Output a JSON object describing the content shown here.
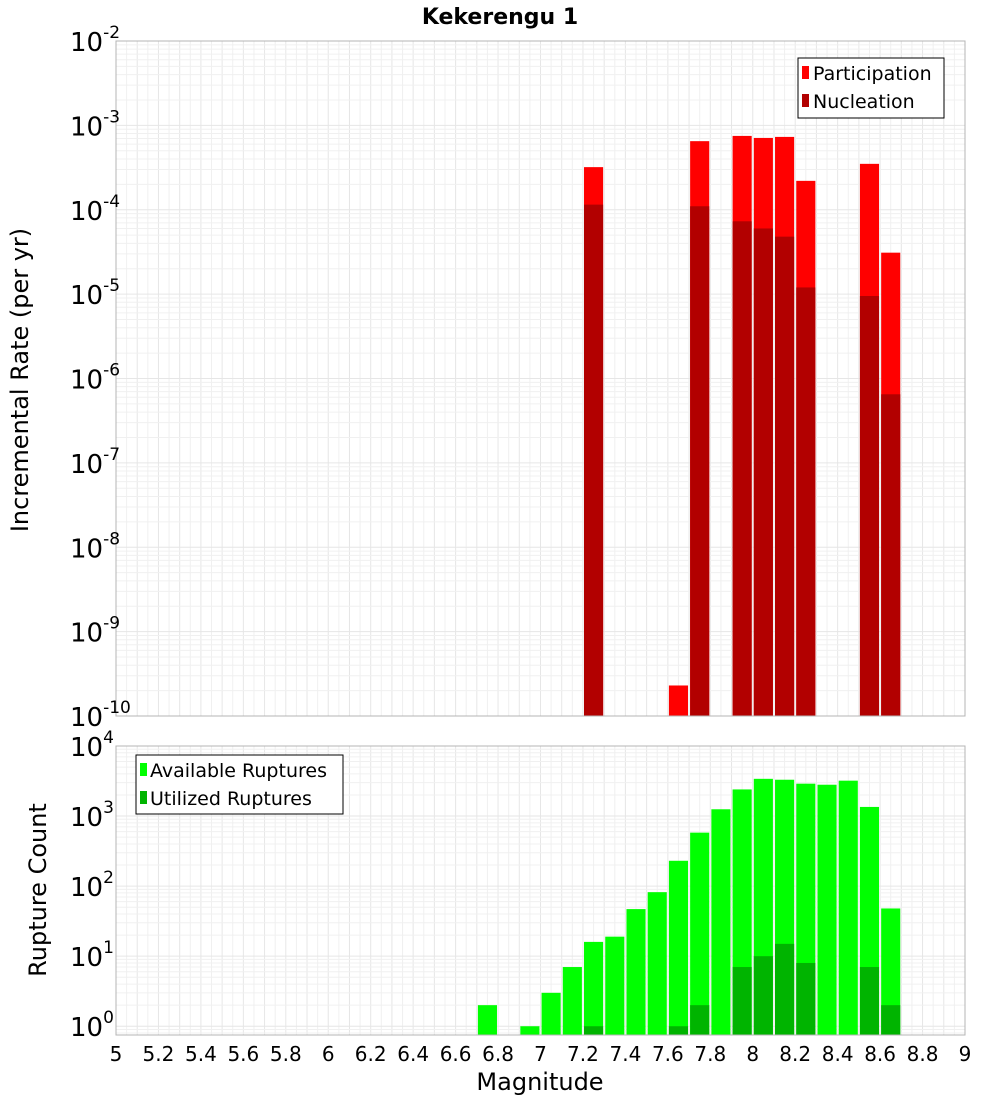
{
  "chart_data": [
    {
      "type": "bar",
      "title": "Kekerengu 1",
      "xlabel": "",
      "ylabel": "Incremental Rate (per yr)",
      "xlim": [
        5,
        9
      ],
      "ylim": [
        1e-10,
        0.01
      ],
      "yscale": "log",
      "y_tick_exponents": [
        "-10",
        "-9",
        "-8",
        "-7",
        "-6",
        "-5",
        "-4",
        "-3",
        "-2"
      ],
      "y_tick_base": "10",
      "grid": true,
      "legend_position": "top-right",
      "bar_width": 0.09,
      "series": [
        {
          "name": "Participation",
          "color": "#ff0000",
          "x": [
            7.25,
            7.65,
            7.75,
            7.95,
            8.05,
            8.15,
            8.25,
            8.55,
            8.65
          ],
          "values": [
            0.00032,
            2.3e-10,
            0.00065,
            0.00075,
            0.00071,
            0.00073,
            0.00022,
            0.00035,
            3.1e-05
          ]
        },
        {
          "name": "Nucleation",
          "color": "#b20000",
          "x": [
            7.25,
            7.75,
            7.95,
            8.05,
            8.15,
            8.25,
            8.55,
            8.65
          ],
          "values": [
            0.000115,
            0.00011,
            7.3e-05,
            6e-05,
            4.8e-05,
            1.2e-05,
            9.5e-06,
            6.5e-07
          ]
        }
      ]
    },
    {
      "type": "bar",
      "title": "",
      "xlabel": "Magnitude",
      "ylabel": "Rupture Count",
      "xlim": [
        5,
        9
      ],
      "ylim": [
        0.75,
        10000
      ],
      "yscale": "log",
      "y_tick_exponents": [
        "0",
        "1",
        "2",
        "3",
        "4"
      ],
      "y_tick_base": "10",
      "x_ticks": [
        "5",
        "5.2",
        "5.4",
        "5.6",
        "5.8",
        "6",
        "6.2",
        "6.4",
        "6.6",
        "6.8",
        "7",
        "7.2",
        "7.4",
        "7.6",
        "7.8",
        "8",
        "8.2",
        "8.4",
        "8.6",
        "8.8",
        "9"
      ],
      "grid": true,
      "legend_position": "top-left",
      "bar_width": 0.09,
      "series": [
        {
          "name": "Available Ruptures",
          "color": "#00ff00",
          "x": [
            6.75,
            6.95,
            7.05,
            7.15,
            7.25,
            7.35,
            7.45,
            7.55,
            7.65,
            7.75,
            7.85,
            7.95,
            8.05,
            8.15,
            8.25,
            8.35,
            8.45,
            8.55,
            8.65
          ],
          "values": [
            2,
            1,
            3,
            7,
            16,
            19,
            47,
            82,
            230,
            580,
            1250,
            2400,
            3400,
            3300,
            2900,
            2800,
            3200,
            1350,
            48
          ]
        },
        {
          "name": "Utilized Ruptures",
          "color": "#00b400",
          "x": [
            7.25,
            7.65,
            7.75,
            7.95,
            8.05,
            8.15,
            8.25,
            8.55,
            8.65
          ],
          "values": [
            1,
            1,
            2,
            7,
            10,
            15,
            8,
            7,
            2
          ]
        }
      ]
    }
  ]
}
